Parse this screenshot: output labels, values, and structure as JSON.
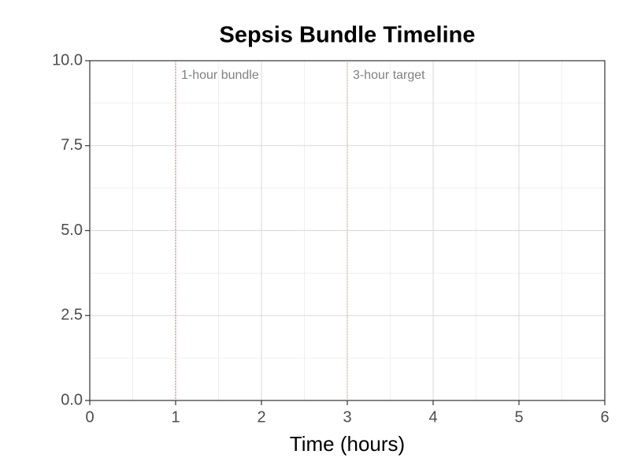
{
  "chart_data": {
    "type": "line",
    "title": "Sepsis Bundle Timeline",
    "x_label": "Time (hours)",
    "xlim": [
      0,
      6
    ],
    "ylim": [
      0,
      10
    ],
    "xticks": [
      0,
      1,
      2,
      3,
      4,
      5,
      6
    ],
    "yticks": [
      {
        "value": 0,
        "label": "0.0"
      },
      {
        "value": 2.5,
        "label": "2.5"
      },
      {
        "value": 5,
        "label": "5.0"
      },
      {
        "value": 7.5,
        "label": "7.5"
      },
      {
        "value": 10,
        "label": "10.0"
      }
    ],
    "x_minor_ticks": [
      0.5,
      1.5,
      2.5,
      3.5,
      4.5,
      5.5
    ],
    "y_minor_ticks": [
      1.25,
      3.75,
      6.25,
      8.75
    ],
    "grid": true,
    "reference_lines": [
      {
        "x": 1,
        "label": "1-hour bundle",
        "color": "#d9534f"
      },
      {
        "x": 3,
        "label": "3-hour target",
        "color": "#e8967a"
      }
    ]
  }
}
